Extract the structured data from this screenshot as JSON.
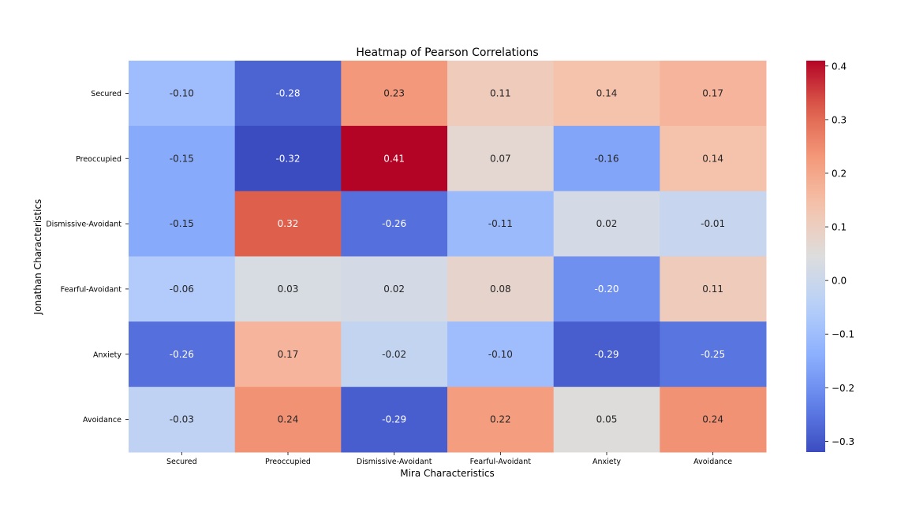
{
  "chart_data": {
    "type": "heatmap",
    "title": "Heatmap of Pearson Correlations",
    "xlabel": "Mira Characteristics",
    "ylabel": "Jonathan Characteristics",
    "x_categories": [
      "Secured",
      "Preoccupied",
      "Dismissive-Avoidant",
      "Fearful-Avoidant",
      "Anxiety",
      "Avoidance"
    ],
    "y_categories": [
      "Secured",
      "Preoccupied",
      "Dismissive-Avoidant",
      "Fearful-Avoidant",
      "Anxiety",
      "Avoidance"
    ],
    "values": [
      [
        -0.1,
        -0.28,
        0.23,
        0.11,
        0.14,
        0.17
      ],
      [
        -0.15,
        -0.32,
        0.41,
        0.07,
        -0.16,
        0.14
      ],
      [
        -0.15,
        0.32,
        -0.26,
        -0.11,
        0.02,
        -0.01
      ],
      [
        -0.06,
        0.03,
        0.02,
        0.08,
        -0.2,
        0.11
      ],
      [
        -0.26,
        0.17,
        -0.02,
        -0.1,
        -0.29,
        -0.25
      ],
      [
        -0.03,
        0.24,
        -0.29,
        0.22,
        0.05,
        0.24
      ]
    ],
    "annotation_format": "0.00",
    "colormap": "coolwarm",
    "colorbar": {
      "vmin": -0.32,
      "vmax": 0.41,
      "ticks": [
        0.4,
        0.3,
        0.2,
        0.1,
        0.0,
        -0.1,
        -0.2,
        -0.3
      ],
      "tick_labels": [
        "0.4",
        "0.3",
        "0.2",
        "0.1",
        "0.0",
        "−0.1",
        "−0.2",
        "−0.3"
      ]
    },
    "legend": "colorbar-right",
    "grid": false
  }
}
